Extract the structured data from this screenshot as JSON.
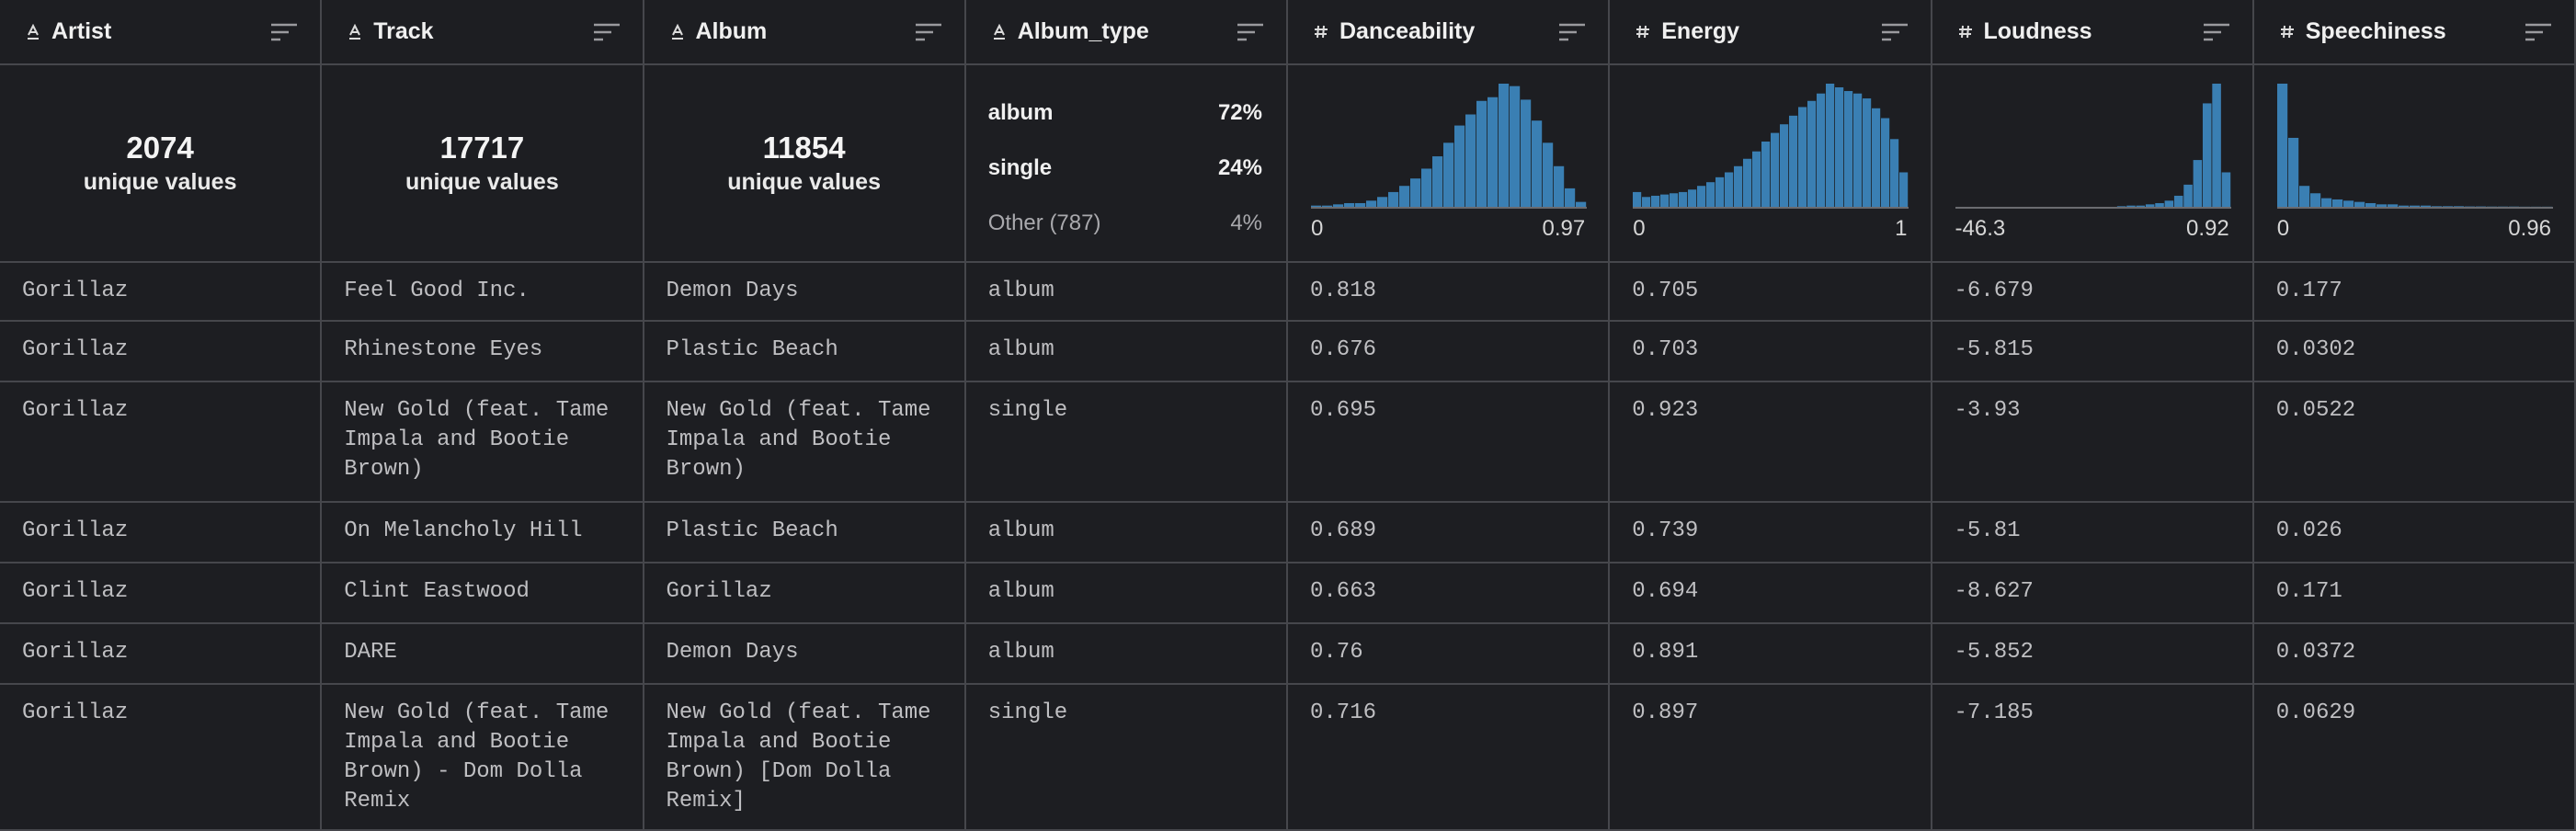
{
  "columns": [
    {
      "name": "Artist",
      "kind": "text",
      "summary": {
        "unique": "2074",
        "caption": "unique values"
      }
    },
    {
      "name": "Track",
      "kind": "text",
      "summary": {
        "unique": "17717",
        "caption": "unique values"
      }
    },
    {
      "name": "Album",
      "kind": "text",
      "summary": {
        "unique": "11854",
        "caption": "unique values"
      }
    },
    {
      "name": "Album_type",
      "kind": "text",
      "summary": {
        "categories": [
          {
            "label": "album",
            "pct": "72%"
          },
          {
            "label": "single",
            "pct": "24%"
          },
          {
            "label": "Other (787)",
            "pct": "4%",
            "muted": true
          }
        ]
      }
    },
    {
      "name": "Danceability",
      "kind": "number",
      "summary": {
        "hist": [
          1,
          1,
          2,
          3,
          3,
          5,
          8,
          12,
          17,
          23,
          31,
          41,
          52,
          66,
          75,
          86,
          89,
          100,
          98,
          87,
          70,
          52,
          33,
          15,
          4
        ],
        "min": "0",
        "max": "0.97"
      }
    },
    {
      "name": "Energy",
      "kind": "number",
      "summary": {
        "hist": [
          12,
          8,
          9,
          10,
          11,
          12,
          14,
          17,
          20,
          24,
          28,
          33,
          39,
          45,
          53,
          60,
          67,
          74,
          81,
          86,
          92,
          100,
          97,
          94,
          92,
          88,
          80,
          72,
          55,
          28
        ],
        "min": "0",
        "max": "1"
      }
    },
    {
      "name": "Loudness",
      "kind": "number",
      "summary": {
        "hist": [
          0,
          0,
          0,
          0,
          0,
          0,
          0,
          0,
          0,
          0,
          0,
          0,
          0,
          0,
          0,
          0,
          0,
          0.5,
          1,
          1,
          2,
          3,
          5,
          9,
          18,
          38,
          84,
          100,
          28
        ],
        "min": "-46.3",
        "max": "0.92"
      }
    },
    {
      "name": "Speechiness",
      "kind": "number",
      "summary": {
        "hist": [
          100,
          56,
          17,
          11,
          7,
          6,
          5,
          4,
          3,
          2,
          2,
          1,
          1,
          1,
          0.5,
          0.5,
          0.5,
          0.3,
          0.3,
          0.2,
          0.2,
          0.2,
          0.1,
          0.1,
          0.1
        ],
        "min": "0",
        "max": "0.96"
      }
    }
  ],
  "rows": [
    [
      "Gorillaz",
      "Feel Good Inc.",
      "Demon Days",
      "album",
      "0.818",
      "0.705",
      "-6.679",
      "0.177"
    ],
    [
      "Gorillaz",
      "Rhinestone Eyes",
      "Plastic Beach",
      "album",
      "0.676",
      "0.703",
      "-5.815",
      "0.0302"
    ],
    [
      "Gorillaz",
      "New Gold (feat. Tame Impala and Bootie Brown)",
      "New Gold (feat. Tame Impala and Bootie Brown)",
      "single",
      "0.695",
      "0.923",
      "-3.93",
      "0.0522"
    ],
    [
      "Gorillaz",
      "On Melancholy Hill",
      "Plastic Beach",
      "album",
      "0.689",
      "0.739",
      "-5.81",
      "0.026"
    ],
    [
      "Gorillaz",
      "Clint Eastwood",
      "Gorillaz",
      "album",
      "0.663",
      "0.694",
      "-8.627",
      "0.171"
    ],
    [
      "Gorillaz",
      "DARE",
      "Demon Days",
      "album",
      "0.76",
      "0.891",
      "-5.852",
      "0.0372"
    ],
    [
      "Gorillaz",
      "New Gold (feat. Tame Impala and Bootie Brown) - Dom Dolla Remix",
      "New Gold (feat. Tame Impala and Bootie Brown) [Dom Dolla Remix]",
      "single",
      "0.716",
      "0.897",
      "-7.185",
      "0.0629"
    ]
  ]
}
